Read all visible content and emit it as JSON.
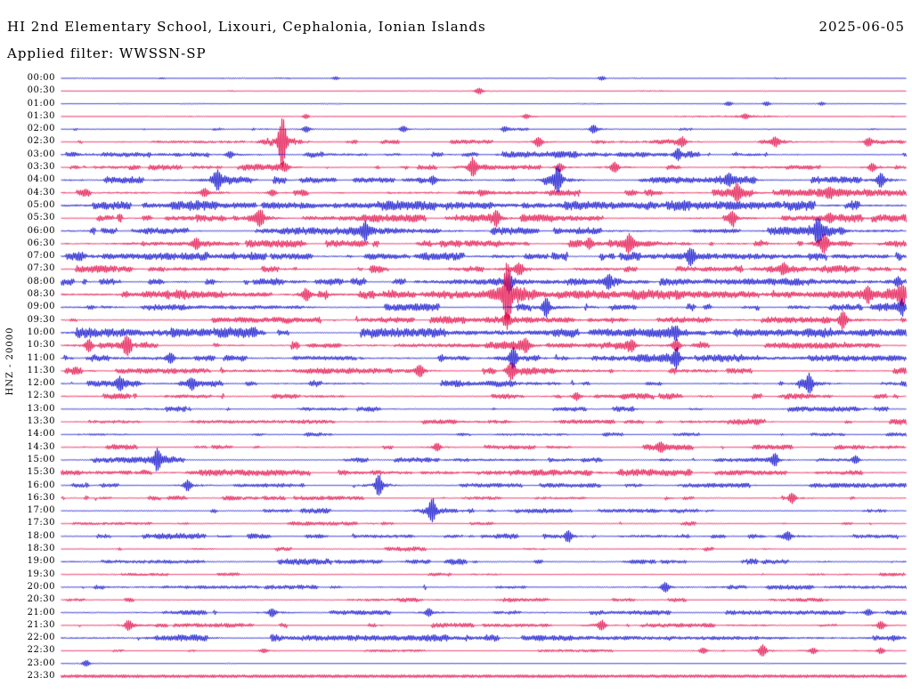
{
  "chart_data": {
    "type": "line",
    "subtype": "helicorder-day-plot",
    "title": "HI 2nd Elementary School, Lixouri, Cephalonia, Ionian Islands",
    "date": "2025-06-05",
    "filter_label": "Applied filter: WWSSN-SP",
    "ylabel": "HNZ - 20000",
    "minutes_per_line": 30,
    "legend": "none",
    "grid": "off",
    "colors": {
      "trace_blue": "#1212CE",
      "trace_red": "#E4104C",
      "text": "#000000",
      "background": "#FFFFFF"
    },
    "rows": [
      {
        "t": "00:00",
        "c": "b",
        "n": 0.35,
        "d": 0.15,
        "e": [
          [
            0.325,
            1.5
          ],
          [
            0.64,
            2
          ]
        ]
      },
      {
        "t": "00:30",
        "c": "r",
        "n": 0.3,
        "d": 0.1,
        "e": [
          [
            0.495,
            3
          ]
        ]
      },
      {
        "t": "01:00",
        "c": "b",
        "n": 0.35,
        "d": 0.15,
        "e": [
          [
            0.79,
            2
          ],
          [
            0.835,
            2
          ],
          [
            0.9,
            1.5
          ]
        ]
      },
      {
        "t": "01:30",
        "c": "r",
        "n": 0.35,
        "d": 0.15,
        "e": [
          [
            0.29,
            2
          ],
          [
            0.55,
            2
          ],
          [
            0.81,
            2
          ]
        ]
      },
      {
        "t": "02:00",
        "c": "b",
        "n": 0.6,
        "d": 0.3,
        "e": [
          [
            0.29,
            3
          ],
          [
            0.405,
            3
          ],
          [
            0.525,
            2
          ],
          [
            0.63,
            4
          ]
        ]
      },
      {
        "t": "02:30",
        "c": "r",
        "n": 0.8,
        "d": 0.4,
        "e": [
          [
            0.262,
            24
          ],
          [
            0.565,
            5
          ],
          [
            0.735,
            5
          ],
          [
            0.845,
            4
          ],
          [
            0.955,
            3
          ]
        ]
      },
      {
        "t": "03:00",
        "c": "b",
        "n": 1.2,
        "d": 0.6,
        "e": [
          [
            0.2,
            3
          ],
          [
            0.73,
            6
          ]
        ]
      },
      {
        "t": "03:30",
        "c": "r",
        "n": 1.2,
        "d": 0.6,
        "e": [
          [
            0.265,
            4
          ],
          [
            0.487,
            9
          ],
          [
            0.59,
            4
          ],
          [
            0.655,
            5
          ],
          [
            0.96,
            4
          ]
        ]
      },
      {
        "t": "04:00",
        "c": "b",
        "n": 1.4,
        "d": 0.6,
        "e": [
          [
            0.185,
            8
          ],
          [
            0.44,
            4
          ],
          [
            0.588,
            13
          ],
          [
            0.79,
            4
          ],
          [
            0.97,
            7
          ]
        ]
      },
      {
        "t": "04:30",
        "c": "r",
        "n": 1.4,
        "d": 0.6,
        "e": [
          [
            0.17,
            4
          ],
          [
            0.25,
            3
          ],
          [
            0.8,
            7
          ],
          [
            0.91,
            4
          ]
        ]
      },
      {
        "t": "05:00",
        "c": "b",
        "n": 2.0,
        "d": 0.9,
        "e": []
      },
      {
        "t": "05:30",
        "c": "r",
        "n": 1.6,
        "d": 0.7,
        "e": [
          [
            0.235,
            7
          ],
          [
            0.515,
            8
          ],
          [
            0.795,
            6
          ],
          [
            0.91,
            4
          ]
        ]
      },
      {
        "t": "06:00",
        "c": "b",
        "n": 1.4,
        "d": 0.6,
        "e": [
          [
            0.36,
            8
          ],
          [
            0.896,
            12
          ]
        ]
      },
      {
        "t": "06:30",
        "c": "r",
        "n": 1.4,
        "d": 0.6,
        "e": [
          [
            0.16,
            4
          ],
          [
            0.625,
            5
          ],
          [
            0.672,
            8
          ],
          [
            0.903,
            9
          ]
        ]
      },
      {
        "t": "07:00",
        "c": "b",
        "n": 1.7,
        "d": 0.8,
        "e": [
          [
            0.745,
            7
          ]
        ]
      },
      {
        "t": "07:30",
        "c": "r",
        "n": 1.4,
        "d": 0.6,
        "e": [
          [
            0.542,
            5
          ],
          [
            0.855,
            4
          ]
        ]
      },
      {
        "t": "08:00",
        "c": "b",
        "n": 1.4,
        "d": 0.6,
        "e": [
          [
            0.53,
            10
          ],
          [
            0.648,
            6
          ],
          [
            0.99,
            5
          ]
        ]
      },
      {
        "t": "08:30",
        "c": "r",
        "n": 2.0,
        "d": 0.9,
        "e": [
          [
            0.29,
            6
          ],
          [
            0.528,
            30
          ],
          [
            0.955,
            6
          ],
          [
            0.995,
            7
          ]
        ]
      },
      {
        "t": "09:00",
        "c": "b",
        "n": 1.4,
        "d": 0.6,
        "e": [
          [
            0.574,
            9
          ],
          [
            0.995,
            6
          ]
        ]
      },
      {
        "t": "09:30",
        "c": "r",
        "n": 1.4,
        "d": 0.6,
        "e": [
          [
            0.527,
            5
          ],
          [
            0.925,
            9
          ]
        ]
      },
      {
        "t": "10:00",
        "c": "b",
        "n": 2.0,
        "d": 0.9,
        "e": [
          [
            0.727,
            5
          ]
        ]
      },
      {
        "t": "10:30",
        "c": "r",
        "n": 1.4,
        "d": 0.6,
        "e": [
          [
            0.033,
            6
          ],
          [
            0.078,
            9
          ],
          [
            0.55,
            7
          ],
          [
            0.675,
            6
          ],
          [
            0.728,
            6
          ]
        ]
      },
      {
        "t": "11:00",
        "c": "b",
        "n": 1.4,
        "d": 0.6,
        "e": [
          [
            0.13,
            5
          ],
          [
            0.535,
            9
          ],
          [
            0.728,
            8
          ]
        ]
      },
      {
        "t": "11:30",
        "c": "r",
        "n": 1.4,
        "d": 0.6,
        "e": [
          [
            0.425,
            6
          ],
          [
            0.533,
            8
          ]
        ]
      },
      {
        "t": "12:00",
        "c": "b",
        "n": 1.2,
        "d": 0.5,
        "e": [
          [
            0.07,
            5
          ],
          [
            0.155,
            5
          ],
          [
            0.885,
            10
          ]
        ]
      },
      {
        "t": "12:30",
        "c": "r",
        "n": 1.2,
        "d": 0.5,
        "e": [
          [
            0.61,
            4
          ]
        ]
      },
      {
        "t": "13:00",
        "c": "b",
        "n": 1.0,
        "d": 0.5,
        "e": []
      },
      {
        "t": "13:30",
        "c": "r",
        "n": 1.2,
        "d": 0.5,
        "e": []
      },
      {
        "t": "14:00",
        "c": "b",
        "n": 0.8,
        "d": 0.35,
        "e": []
      },
      {
        "t": "14:30",
        "c": "r",
        "n": 1.0,
        "d": 0.45,
        "e": [
          [
            0.445,
            4
          ],
          [
            0.71,
            4
          ]
        ]
      },
      {
        "t": "15:00",
        "c": "b",
        "n": 1.0,
        "d": 0.45,
        "e": [
          [
            0.114,
            9
          ],
          [
            0.845,
            5
          ],
          [
            0.94,
            4
          ]
        ]
      },
      {
        "t": "15:30",
        "c": "r",
        "n": 1.3,
        "d": 0.6,
        "e": []
      },
      {
        "t": "16:00",
        "c": "b",
        "n": 1.0,
        "d": 0.45,
        "e": [
          [
            0.15,
            5
          ],
          [
            0.376,
            10
          ]
        ]
      },
      {
        "t": "16:30",
        "c": "r",
        "n": 0.9,
        "d": 0.4,
        "e": [
          [
            0.865,
            5
          ]
        ]
      },
      {
        "t": "17:00",
        "c": "b",
        "n": 1.0,
        "d": 0.45,
        "e": [
          [
            0.439,
            11
          ]
        ]
      },
      {
        "t": "17:30",
        "c": "r",
        "n": 0.8,
        "d": 0.35,
        "e": []
      },
      {
        "t": "18:00",
        "c": "b",
        "n": 1.1,
        "d": 0.5,
        "e": [
          [
            0.6,
            6
          ],
          [
            0.86,
            4
          ]
        ]
      },
      {
        "t": "18:30",
        "c": "r",
        "n": 0.8,
        "d": 0.35,
        "e": []
      },
      {
        "t": "19:00",
        "c": "b",
        "n": 1.2,
        "d": 0.55,
        "e": []
      },
      {
        "t": "19:30",
        "c": "r",
        "n": 0.7,
        "d": 0.3,
        "e": []
      },
      {
        "t": "20:00",
        "c": "b",
        "n": 1.1,
        "d": 0.5,
        "e": [
          [
            0.715,
            5
          ]
        ]
      },
      {
        "t": "20:30",
        "c": "r",
        "n": 0.8,
        "d": 0.35,
        "e": []
      },
      {
        "t": "21:00",
        "c": "b",
        "n": 1.0,
        "d": 0.45,
        "e": [
          [
            0.25,
            4
          ],
          [
            0.435,
            4
          ],
          [
            0.955,
            3
          ]
        ]
      },
      {
        "t": "21:30",
        "c": "r",
        "n": 0.9,
        "d": 0.4,
        "e": [
          [
            0.08,
            5
          ],
          [
            0.64,
            5
          ],
          [
            0.97,
            4
          ]
        ]
      },
      {
        "t": "22:00",
        "c": "b",
        "n": 1.5,
        "d": 0.7,
        "e": []
      },
      {
        "t": "22:30",
        "c": "r",
        "n": 0.5,
        "d": 0.2,
        "e": [
          [
            0.24,
            2
          ],
          [
            0.76,
            3
          ],
          [
            0.83,
            6
          ],
          [
            0.89,
            3
          ],
          [
            0.97,
            3
          ]
        ]
      },
      {
        "t": "23:00",
        "c": "b",
        "n": 0.25,
        "d": 0.08,
        "e": [
          [
            0.03,
            3
          ]
        ]
      },
      {
        "t": "23:30",
        "c": "r",
        "n": 1.7,
        "d": 1.0,
        "e": []
      }
    ]
  }
}
